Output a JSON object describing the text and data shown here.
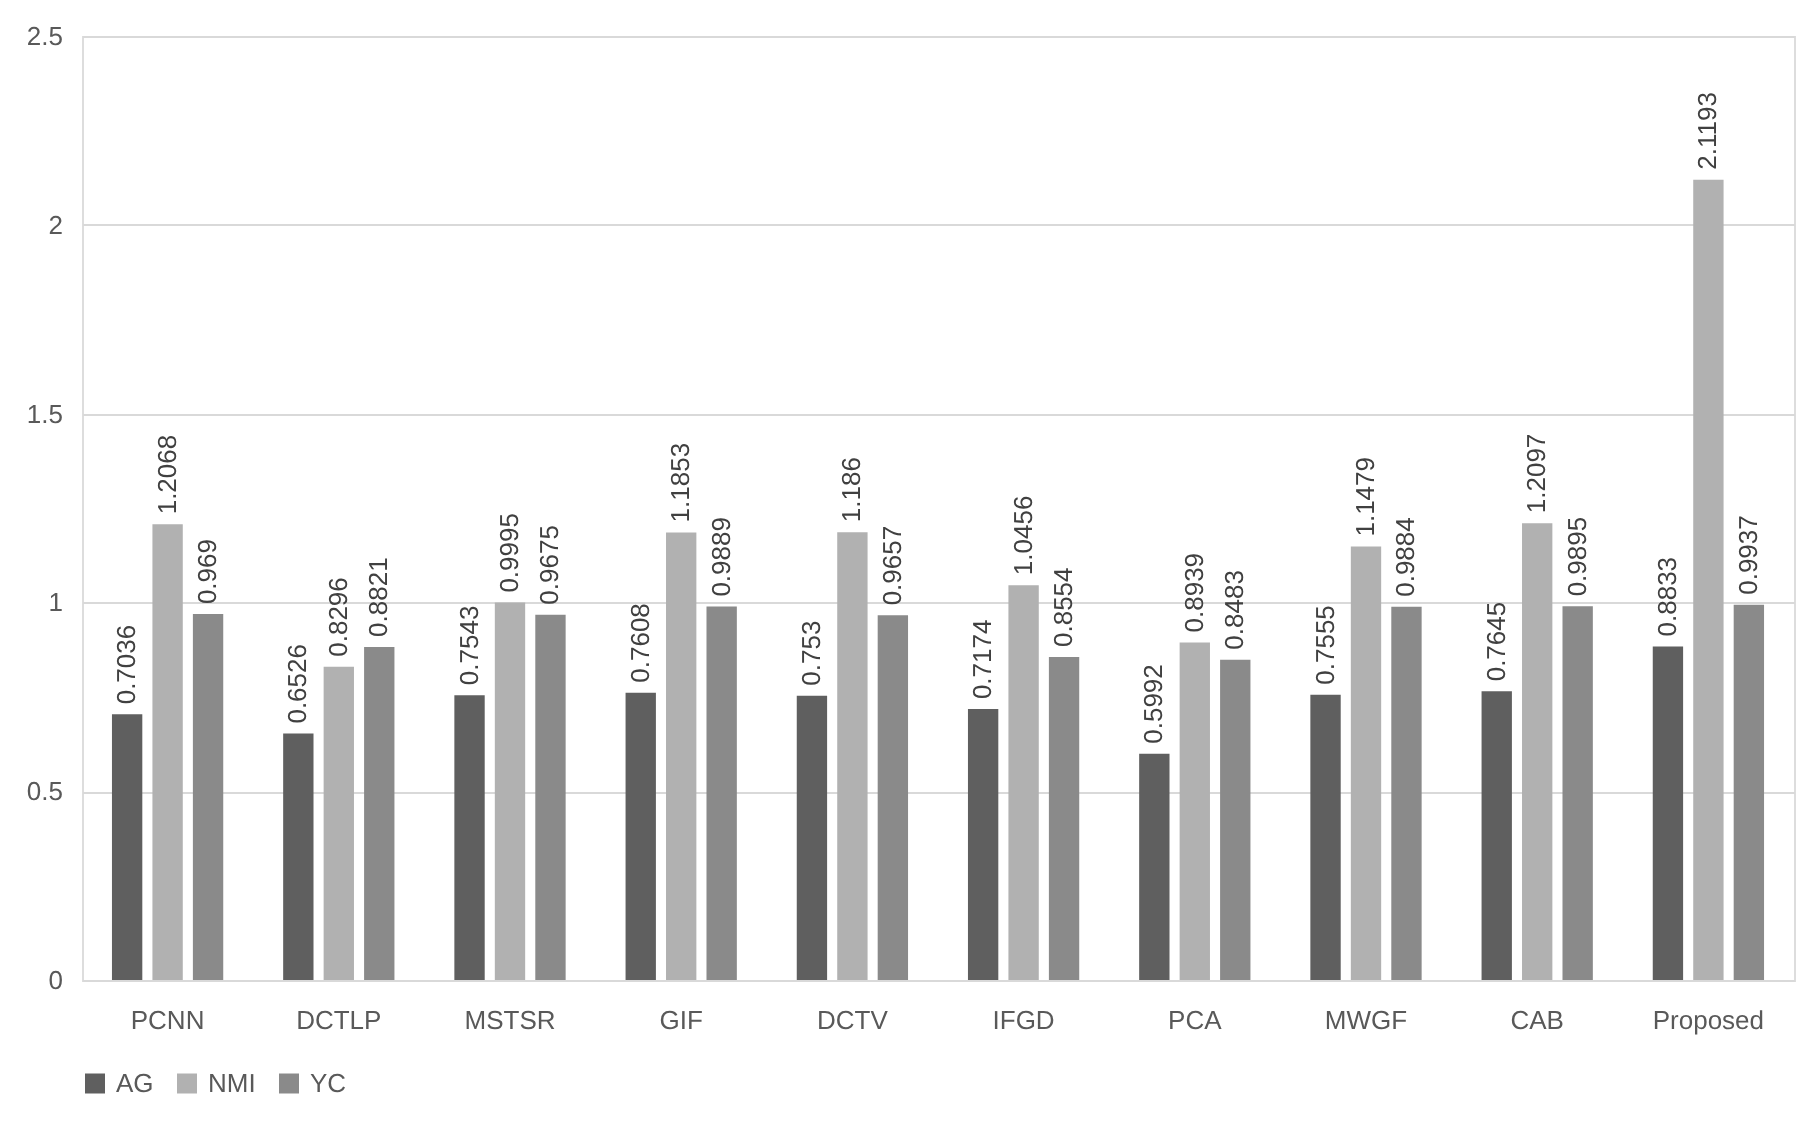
{
  "chart_data": {
    "type": "bar",
    "categories": [
      "PCNN",
      "DCTLP",
      "MSTSR",
      "GIF",
      "DCTV",
      "IFGD",
      "PCA",
      "MWGF",
      "CAB",
      "Proposed"
    ],
    "series": [
      {
        "name": "AG",
        "color": "#5f5f5f",
        "values": [
          0.7036,
          0.6526,
          0.7543,
          0.7608,
          0.753,
          0.7174,
          0.5992,
          0.7555,
          0.7645,
          0.8833
        ]
      },
      {
        "name": "NMI",
        "color": "#b1b1b1",
        "values": [
          1.2068,
          0.8296,
          0.9995,
          1.1853,
          1.186,
          1.0456,
          0.8939,
          1.1479,
          1.2097,
          2.1193
        ]
      },
      {
        "name": "YC",
        "color": "#8a8a8a",
        "values": [
          0.969,
          0.8821,
          0.9675,
          0.9889,
          0.9657,
          0.8554,
          0.8483,
          0.9884,
          0.9895,
          0.9937
        ]
      }
    ],
    "ylim": [
      0,
      2.5
    ],
    "yticks": [
      0,
      0.5,
      1,
      1.5,
      2,
      2.5
    ],
    "grid": "y",
    "legend": "bottom",
    "data_labels": true
  }
}
